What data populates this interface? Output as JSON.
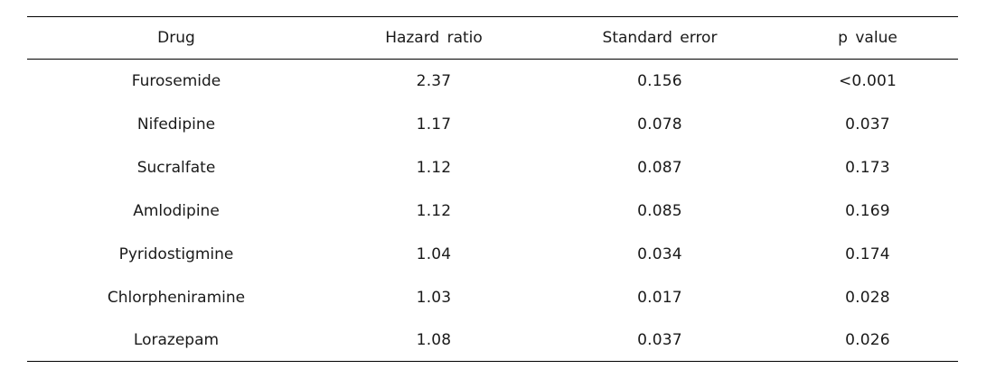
{
  "table": {
    "columns": [
      "Drug",
      "Hazard  ratio",
      "Standard  error",
      "p  value"
    ],
    "rows": [
      {
        "drug": "Furosemide",
        "hazard_ratio": "2.37",
        "standard_error": "0.156",
        "p_value": "<0.001"
      },
      {
        "drug": "Nifedipine",
        "hazard_ratio": "1.17",
        "standard_error": "0.078",
        "p_value": "0.037"
      },
      {
        "drug": "Sucralfate",
        "hazard_ratio": "1.12",
        "standard_error": "0.087",
        "p_value": "0.173"
      },
      {
        "drug": "Amlodipine",
        "hazard_ratio": "1.12",
        "standard_error": "0.085",
        "p_value": "0.169"
      },
      {
        "drug": "Pyridostigmine",
        "hazard_ratio": "1.04",
        "standard_error": "0.034",
        "p_value": "0.174"
      },
      {
        "drug": "Chlorpheniramine",
        "hazard_ratio": "1.03",
        "standard_error": "0.017",
        "p_value": "0.028"
      },
      {
        "drug": "Lorazepam",
        "hazard_ratio": "1.08",
        "standard_error": "0.037",
        "p_value": "0.026"
      }
    ]
  }
}
